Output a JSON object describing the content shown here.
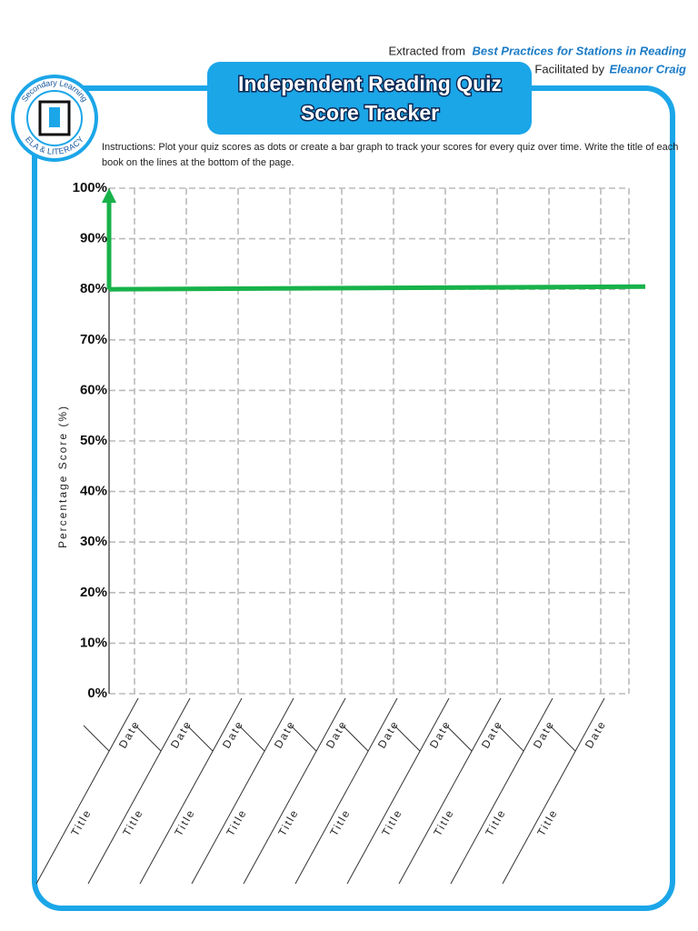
{
  "header": {
    "source_prefix": "Extracted from",
    "source_title": "Best Practices for Stations in Reading",
    "facilitator_prefix": "Facilitated by",
    "facilitator": "Eleanor Craig"
  },
  "logo": {
    "top": "Secondary Learning",
    "bottom": "ELA & LITERACY"
  },
  "title": {
    "line1": "Independent Reading Quiz",
    "line2": "Score Tracker"
  },
  "instructions": {
    "line1": "Instructions: Plot your quiz scores as dots or create a bar graph to track your scores for every quiz over time. Write the title of each",
    "line2": "book on the lines at the bottom of the page."
  },
  "chart": {
    "ylabel": "Percentage Score (%)",
    "ylim": [
      0,
      100
    ],
    "yticks": [
      {
        "value": 100,
        "label": "100%"
      },
      {
        "value": 90,
        "label": "90%"
      },
      {
        "value": 80,
        "label": "80%"
      },
      {
        "value": 70,
        "label": "70%"
      },
      {
        "value": 60,
        "label": "60%"
      },
      {
        "value": 50,
        "label": "50%"
      },
      {
        "value": 40,
        "label": "40%"
      },
      {
        "value": 30,
        "label": "30%"
      },
      {
        "value": 20,
        "label": "20%"
      },
      {
        "value": 10,
        "label": "10%"
      },
      {
        "value": 0,
        "label": "0%"
      }
    ],
    "target": 80,
    "target_color": "#17b24a",
    "columns": [
      {
        "date": "Date",
        "title": "Title"
      },
      {
        "date": "Date",
        "title": "Title"
      },
      {
        "date": "Date",
        "title": "Title"
      },
      {
        "date": "Date",
        "title": "Title"
      },
      {
        "date": "Date",
        "title": "Title"
      },
      {
        "date": "Date",
        "title": "Title"
      },
      {
        "date": "Date",
        "title": "Title"
      },
      {
        "date": "Date",
        "title": "Title"
      },
      {
        "date": "Date",
        "title": "Title"
      },
      {
        "date": "Date",
        "title": "Title"
      }
    ]
  }
}
